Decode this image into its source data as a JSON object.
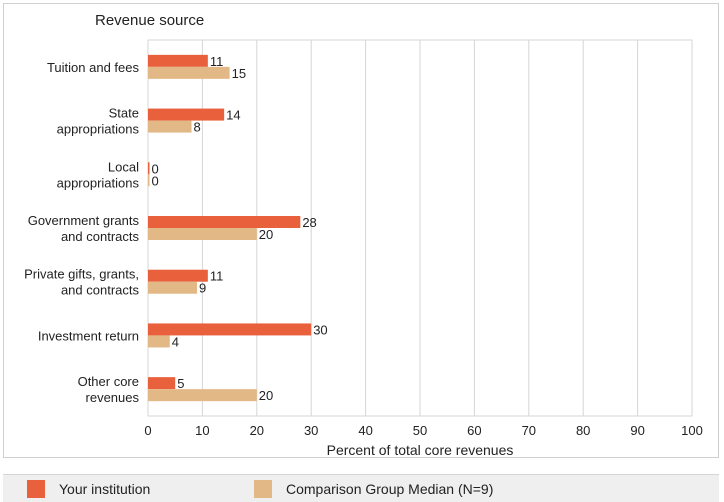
{
  "chart_data": {
    "type": "bar",
    "orientation": "horizontal",
    "category_axis_title": "Revenue source",
    "xlabel": "Percent of total core revenues",
    "xlim": [
      0,
      100
    ],
    "xticks": [
      0,
      10,
      20,
      30,
      40,
      50,
      60,
      70,
      80,
      90,
      100
    ],
    "grid": true,
    "categories": [
      [
        "Tuition and fees"
      ],
      [
        "State",
        "appropriations"
      ],
      [
        "Local",
        "appropriations"
      ],
      [
        "Government grants",
        "and contracts"
      ],
      [
        "Private gifts, grants,",
        "and contracts"
      ],
      [
        "Investment return"
      ],
      [
        "Other core",
        "revenues"
      ]
    ],
    "series": [
      {
        "name": "Your institution",
        "color": "#e8603c",
        "values": [
          11,
          14,
          0,
          28,
          11,
          30,
          5
        ]
      },
      {
        "name": "Comparison Group Median (N=9)",
        "color": "#e3b887",
        "values": [
          15,
          8,
          0,
          20,
          9,
          4,
          20
        ]
      }
    ],
    "legend_position": "bottom"
  }
}
